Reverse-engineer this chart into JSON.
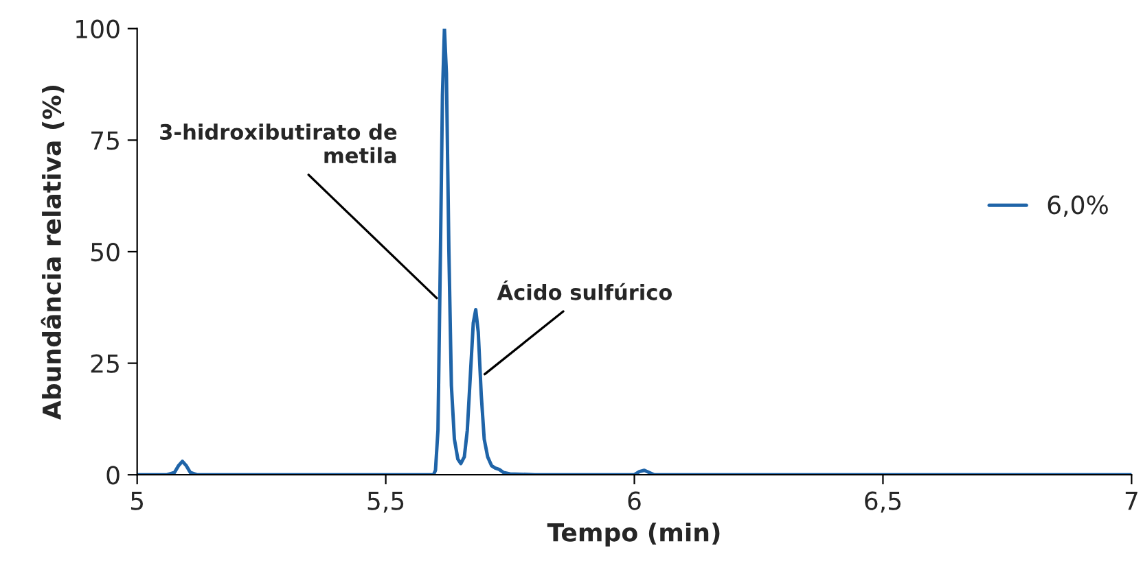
{
  "chart_data": {
    "type": "line",
    "xlabel": "Tempo (min)",
    "ylabel": "Abundância relativa (%)",
    "xlim": [
      5,
      7
    ],
    "xticks": [
      5,
      {
        "value": 5.5,
        "label": "5,5"
      },
      6,
      {
        "value": 6.5,
        "label": "6,5"
      },
      7
    ],
    "ylim": [
      0,
      100
    ],
    "yticks": [
      0,
      25,
      50,
      75,
      100
    ],
    "grid": false,
    "legend": "right",
    "marker": "none",
    "line_style": "solid",
    "series": [
      {
        "name": "6,0%",
        "color": "#1f64a8",
        "x": [
          5.0,
          5.06,
          5.075,
          5.083,
          5.091,
          5.099,
          5.107,
          5.12,
          5.3,
          5.5,
          5.59,
          5.596,
          5.6,
          5.605,
          5.61,
          5.614,
          5.618,
          5.622,
          5.627,
          5.632,
          5.638,
          5.645,
          5.651,
          5.658,
          5.664,
          5.67,
          5.676,
          5.681,
          5.686,
          5.692,
          5.698,
          5.705,
          5.713,
          5.72,
          5.728,
          5.737,
          5.75,
          5.8,
          6.0,
          6.01,
          6.02,
          6.03,
          6.04,
          6.3,
          6.6,
          6.9,
          7.0
        ],
        "values": [
          0,
          0,
          0.5,
          2,
          3,
          2,
          0.5,
          0,
          0,
          0,
          0,
          0,
          1,
          10,
          50,
          85,
          100,
          90,
          50,
          20,
          8,
          3.5,
          2.5,
          4,
          10,
          22,
          34,
          37,
          32,
          18,
          8,
          4,
          2,
          1.5,
          1.2,
          0.5,
          0.2,
          0,
          0,
          0.7,
          1,
          0.5,
          0,
          0,
          0,
          0,
          0
        ]
      }
    ],
    "annotations": [
      {
        "text": "3-hidroxibutirato de\nmetila",
        "x": 5.608,
        "y": 39
      },
      {
        "text": "Ácido sulfúrico",
        "x": 5.693,
        "y": 22
      }
    ]
  }
}
